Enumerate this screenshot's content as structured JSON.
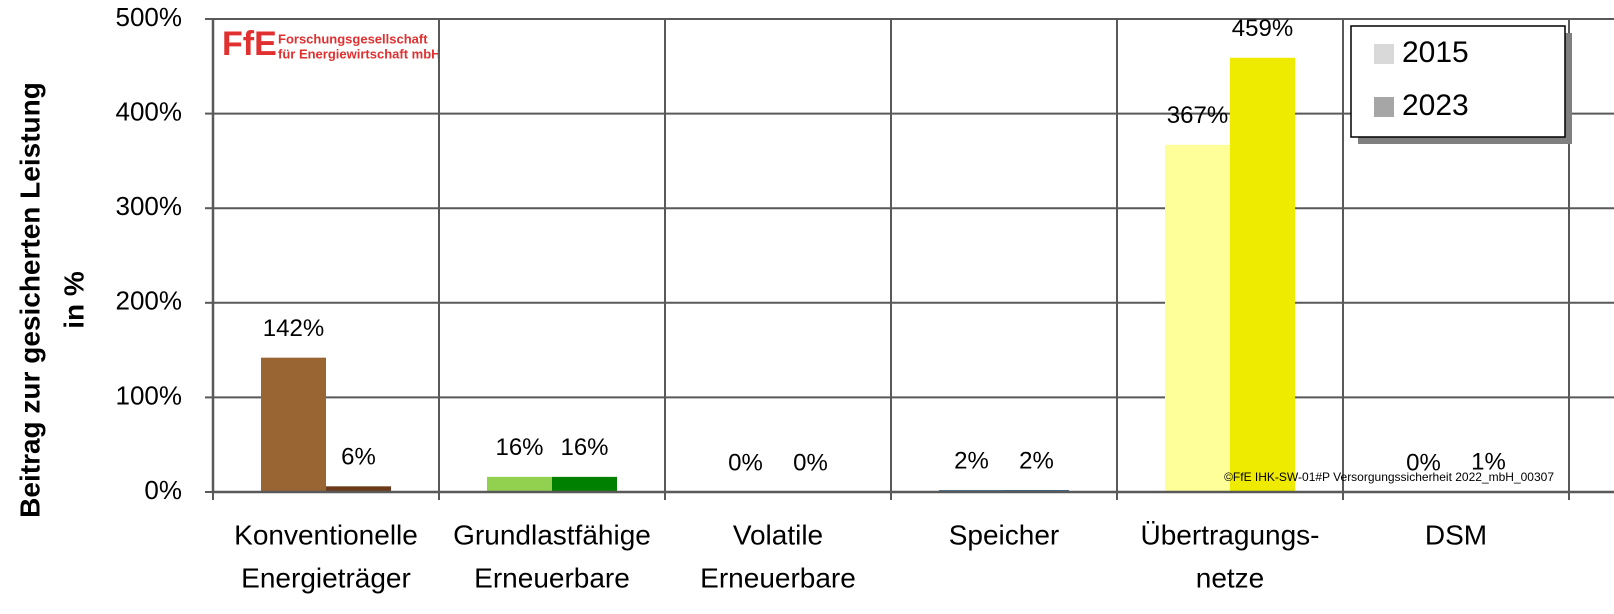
{
  "chart_data": {
    "type": "bar",
    "y_label": [
      "Beitrag zur gesicherten Leistung",
      "in %"
    ],
    "categories": [
      [
        "Konventionelle",
        "Energieträger"
      ],
      [
        "Grundlastfähige",
        "Erneuerbare"
      ],
      [
        "Volatile",
        "Erneuerbare"
      ],
      [
        "Speicher"
      ],
      [
        "Übertragungs-",
        "netze"
      ],
      [
        "DSM"
      ]
    ],
    "series": [
      {
        "name": "2015",
        "color": "#d9d9d9",
        "point_colors": [
          "#996633",
          "#92d050",
          "#4f81bd",
          "#2e5f8a",
          "#ffff99",
          "#bfbfbf"
        ],
        "values": [
          142,
          16,
          0,
          2,
          367,
          0
        ],
        "value_labels": [
          "142%",
          "16%",
          "0%",
          "2%",
          "367%",
          "0%"
        ]
      },
      {
        "name": "2023",
        "color": "#a6a6a6",
        "point_colors": [
          "#6b3a1a",
          "#008000",
          "#1f4e79",
          "#1f4e79",
          "#eeea00",
          "#808080"
        ],
        "values": [
          6,
          16,
          0,
          2,
          459,
          1
        ],
        "value_labels": [
          "6%",
          "16%",
          "0%",
          "2%",
          "459%",
          "1%"
        ]
      }
    ],
    "ylim": [
      0,
      500
    ],
    "yticks": [
      {
        "value": 0,
        "label": "0%"
      },
      {
        "value": 100,
        "label": "100%"
      },
      {
        "value": 200,
        "label": "200%"
      },
      {
        "value": 300,
        "label": "300%"
      },
      {
        "value": 400,
        "label": "400%"
      },
      {
        "value": 500,
        "label": "500%"
      }
    ],
    "grid": true,
    "legend": "top-right",
    "logo": {
      "mark": "FfE",
      "lines": [
        "Forschungsgesellschaft",
        "für Energiewirtschaft mbH"
      ]
    },
    "note": "©FfE IHK-SW-01#P Versorgungssicherheit 2022_mbH_00307"
  }
}
